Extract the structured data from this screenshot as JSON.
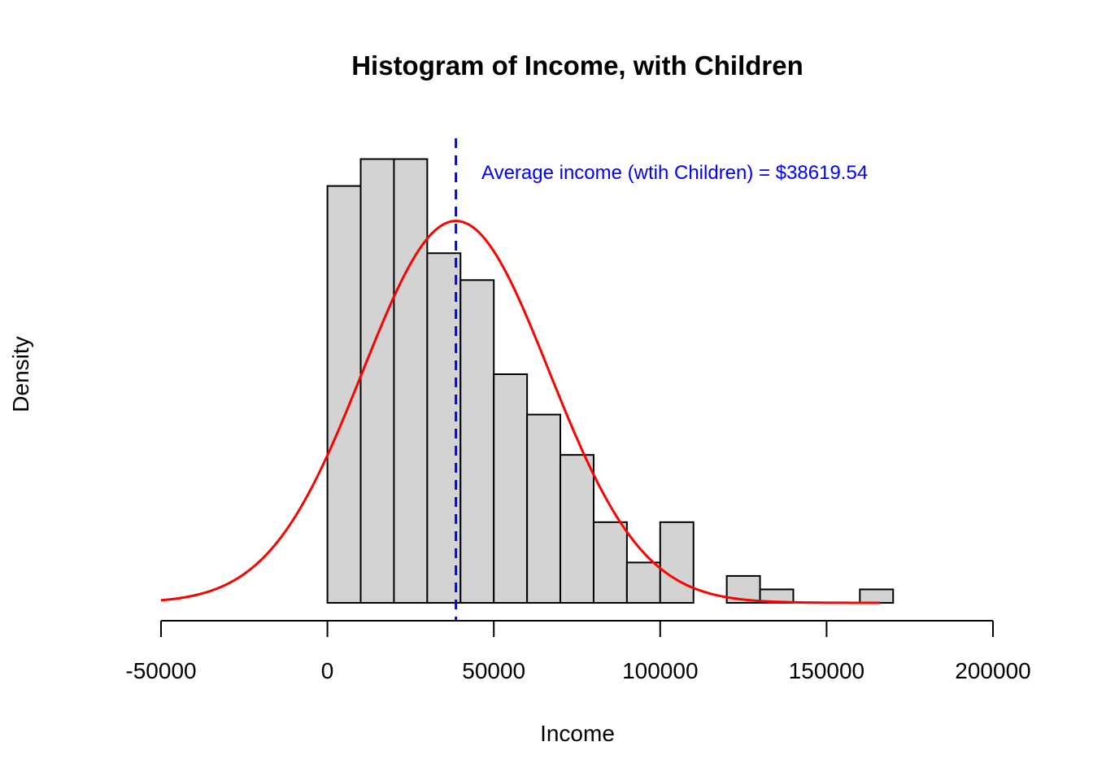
{
  "chart_data": {
    "type": "bar",
    "title": "Histogram of Income, with Children",
    "xlabel": "Income",
    "ylabel": "Density",
    "xlim": [
      -50000,
      200000
    ],
    "x_ticks": [
      -50000,
      0,
      50000,
      100000,
      150000,
      200000
    ],
    "x_tick_labels": [
      "-50000",
      "0",
      "50000",
      "100000",
      "150000",
      "200000"
    ],
    "bin_width": 10000,
    "bins": [
      {
        "start": 0,
        "end": 10000,
        "value": 1.55e-05
      },
      {
        "start": 10000,
        "end": 20000,
        "value": 1.65e-05
      },
      {
        "start": 20000,
        "end": 30000,
        "value": 1.65e-05
      },
      {
        "start": 30000,
        "end": 40000,
        "value": 1.3e-05
      },
      {
        "start": 40000,
        "end": 50000,
        "value": 1.2e-05
      },
      {
        "start": 50000,
        "end": 60000,
        "value": 8.5e-06
      },
      {
        "start": 60000,
        "end": 70000,
        "value": 7e-06
      },
      {
        "start": 70000,
        "end": 80000,
        "value": 5.5e-06
      },
      {
        "start": 80000,
        "end": 90000,
        "value": 3e-06
      },
      {
        "start": 90000,
        "end": 100000,
        "value": 1.5e-06
      },
      {
        "start": 100000,
        "end": 110000,
        "value": 3e-06
      },
      {
        "start": 110000,
        "end": 120000,
        "value": 0
      },
      {
        "start": 120000,
        "end": 130000,
        "value": 1e-06
      },
      {
        "start": 130000,
        "end": 140000,
        "value": 5e-07
      },
      {
        "start": 140000,
        "end": 150000,
        "value": 0
      },
      {
        "start": 150000,
        "end": 160000,
        "value": 0
      },
      {
        "start": 160000,
        "end": 170000,
        "value": 5e-07
      }
    ],
    "ylim": [
      0,
      1.7e-05
    ],
    "normal_curve": {
      "mean": 38619.54,
      "sd": 28000,
      "x_range": [
        -50000,
        166000
      ],
      "color": "#ff0000"
    },
    "mean_line": {
      "x": 38619.54,
      "color": "#0000ff",
      "style": "dashed"
    },
    "annotation": {
      "text": "Average income (wtih Children) = $38619.54",
      "color": "#0000ff"
    },
    "bar_fill": "#d3d3d3",
    "bar_stroke": "#000000",
    "grid": false
  }
}
